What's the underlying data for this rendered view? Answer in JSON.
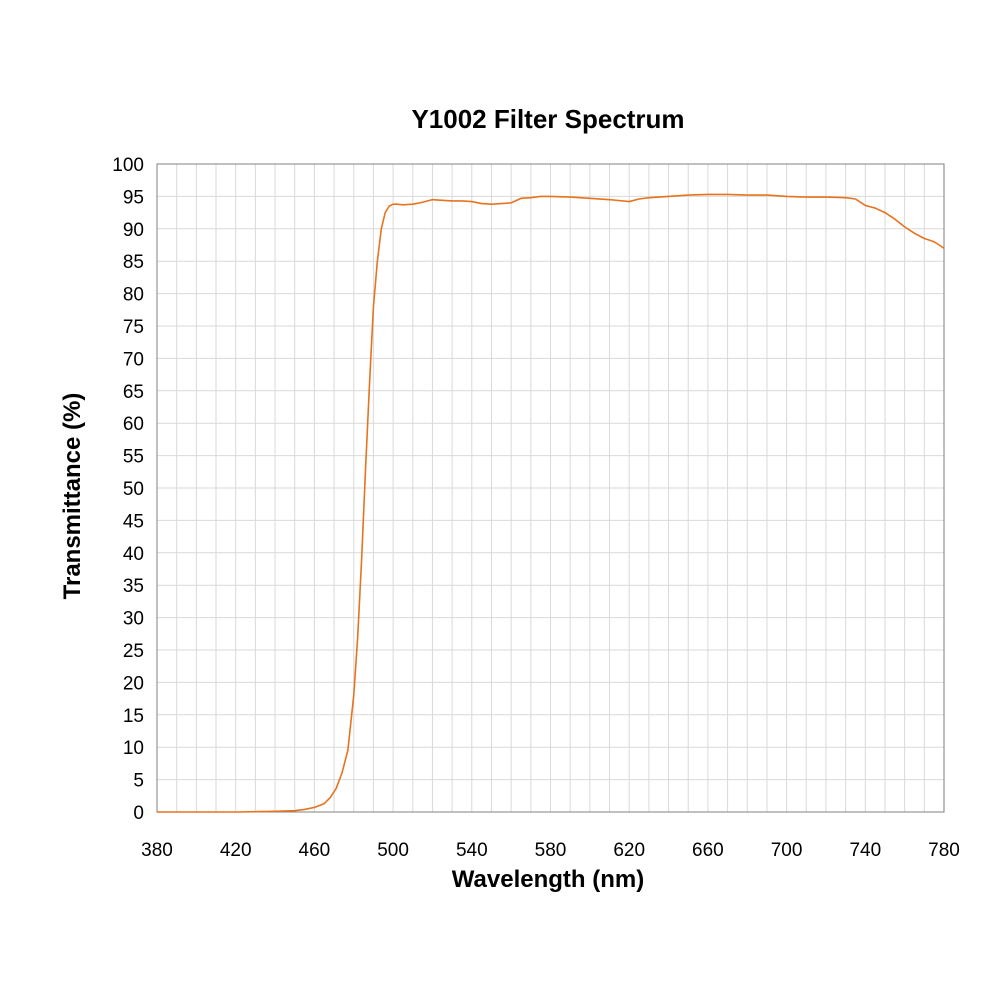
{
  "chart_data": {
    "type": "line",
    "title": "Y1002 Filter Spectrum",
    "xlabel": "Wavelength (nm)",
    "ylabel": "Transmittance (%)",
    "xlim": [
      380,
      780
    ],
    "ylim": [
      0,
      100
    ],
    "x_ticks": [
      380,
      420,
      460,
      500,
      540,
      580,
      620,
      660,
      700,
      740,
      780
    ],
    "y_ticks": [
      0,
      5,
      10,
      15,
      20,
      25,
      30,
      35,
      40,
      45,
      50,
      55,
      60,
      65,
      70,
      75,
      80,
      85,
      90,
      95,
      100
    ],
    "grid": true,
    "line_color": "#E8731E",
    "series": [
      {
        "x": [
          380,
          400,
          420,
          440,
          450,
          455,
          460,
          465,
          468,
          471,
          474,
          477,
          480,
          482,
          484,
          486,
          488,
          490,
          492,
          494,
          496,
          498,
          500,
          502,
          505,
          510,
          515,
          520,
          525,
          530,
          535,
          540,
          545,
          550,
          555,
          560,
          565,
          570,
          575,
          580,
          590,
          600,
          610,
          620,
          625,
          630,
          640,
          650,
          660,
          670,
          680,
          690,
          700,
          710,
          720,
          730,
          735,
          740,
          745,
          750,
          755,
          760,
          765,
          770,
          775,
          780
        ],
        "y": [
          0,
          0,
          0,
          0.1,
          0.2,
          0.4,
          0.7,
          1.3,
          2.2,
          3.6,
          6.0,
          9.5,
          18,
          27,
          39,
          53,
          66,
          78,
          85,
          90,
          92.5,
          93.5,
          93.8,
          93.8,
          93.7,
          93.8,
          94.1,
          94.5,
          94.4,
          94.3,
          94.3,
          94.2,
          93.9,
          93.8,
          93.9,
          94.0,
          94.7,
          94.8,
          95.0,
          95.0,
          94.9,
          94.7,
          94.5,
          94.2,
          94.6,
          94.8,
          95.0,
          95.2,
          95.3,
          95.3,
          95.2,
          95.2,
          95.0,
          94.9,
          94.9,
          94.8,
          94.6,
          93.6,
          93.2,
          92.5,
          91.5,
          90.3,
          89.3,
          88.5,
          88.0,
          87.0
        ]
      }
    ]
  }
}
